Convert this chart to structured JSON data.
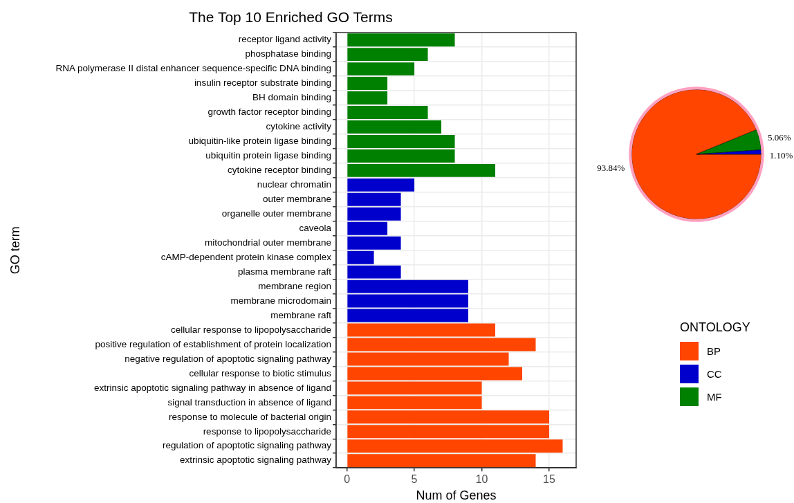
{
  "chart_data": [
    {
      "type": "bar",
      "orientation": "horizontal",
      "title": "The Top 10 Enriched GO Terms",
      "xlabel": "Num of Genes",
      "ylabel": "GO term",
      "legend_title": "ONTOLOGY",
      "legend": "right",
      "grid": true,
      "xlim": [
        -0.8,
        17
      ],
      "xticks": [
        0,
        5,
        10,
        15
      ],
      "categories": [
        "receptor ligand activity",
        "phosphatase binding",
        "RNA polymerase II distal enhancer sequence-specific DNA binding",
        "insulin receptor substrate binding",
        "BH domain binding",
        "growth factor receptor binding",
        "cytokine activity",
        "ubiquitin-like protein ligase binding",
        "ubiquitin protein ligase binding",
        "cytokine receptor binding",
        "nuclear chromatin",
        "outer membrane",
        "organelle outer membrane",
        "caveola",
        "mitochondrial outer membrane",
        "cAMP-dependent protein kinase complex",
        "plasma membrane raft",
        "membrane region",
        "membrane microdomain",
        "membrane raft",
        "cellular response to lipopolysaccharide",
        "positive regulation of establishment of protein localization",
        "negative regulation of apoptotic signaling pathway",
        "cellular response to biotic stimulus",
        "extrinsic apoptotic signaling pathway in absence of ligand",
        "signal transduction in absence of ligand",
        "response to molecule of bacterial origin",
        "response to lipopolysaccharide",
        "regulation of apoptotic signaling pathway",
        "extrinsic apoptotic signaling pathway"
      ],
      "series": [
        {
          "name": "BP",
          "color": "#ff4500",
          "values": [
            null,
            null,
            null,
            null,
            null,
            null,
            null,
            null,
            null,
            null,
            null,
            null,
            null,
            null,
            null,
            null,
            null,
            null,
            null,
            null,
            11,
            14,
            12,
            13,
            10,
            10,
            15,
            15,
            16,
            14
          ]
        },
        {
          "name": "CC",
          "color": "#0000cd",
          "values": [
            null,
            null,
            null,
            null,
            null,
            null,
            null,
            null,
            null,
            null,
            5,
            4,
            4,
            3,
            4,
            2,
            4,
            9,
            9,
            9,
            null,
            null,
            null,
            null,
            null,
            null,
            null,
            null,
            null,
            null
          ]
        },
        {
          "name": "MF",
          "color": "#008000",
          "values": [
            8,
            6,
            5,
            3,
            3,
            6,
            7,
            8,
            8,
            11,
            null,
            null,
            null,
            null,
            null,
            null,
            null,
            null,
            null,
            null,
            null,
            null,
            null,
            null,
            null,
            null,
            null,
            null,
            null,
            null
          ]
        }
      ]
    },
    {
      "type": "pie",
      "categories": [
        null,
        null,
        null
      ],
      "values": [
        93.84,
        5.06,
        1.1
      ],
      "colors": [
        "#ff4500",
        "#008000",
        "#0000cd"
      ],
      "value_labels": [
        "93.84%",
        "5.06%",
        "1.10%"
      ],
      "legend": false
    }
  ]
}
